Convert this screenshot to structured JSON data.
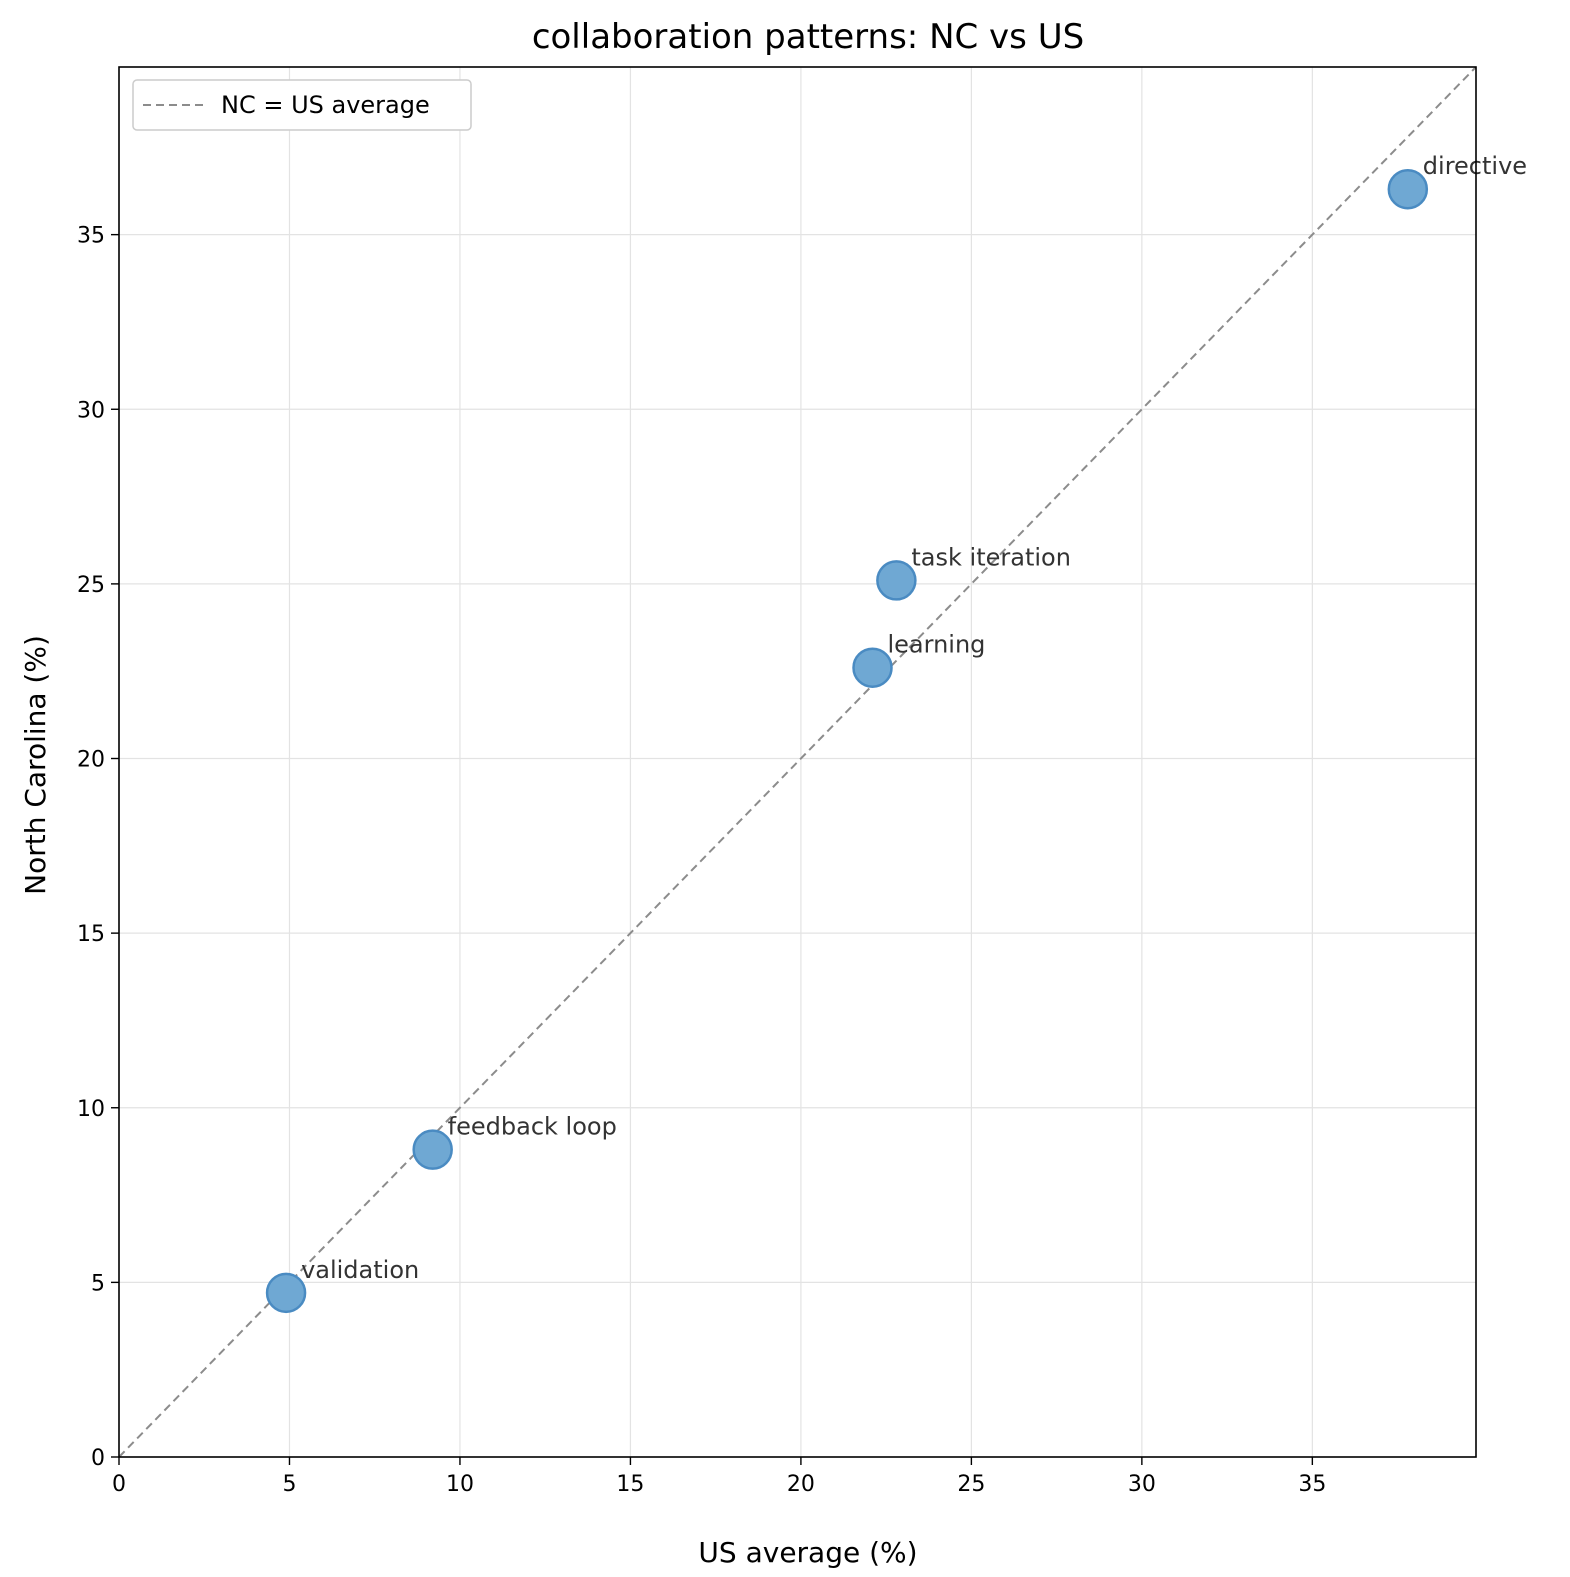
{
  "chart_data": {
    "type": "scatter",
    "title": "collaboration patterns: NC vs US",
    "xlabel": "US average (%)",
    "ylabel": "North Carolina (%)",
    "xlim": [
      0,
      39.8
    ],
    "ylim": [
      0,
      39.8
    ],
    "xticks": [
      "0",
      "5",
      "10",
      "15",
      "20",
      "25",
      "30",
      "35"
    ],
    "yticks": [
      "0",
      "5",
      "10",
      "15",
      "20",
      "25",
      "30",
      "35"
    ],
    "grid": true,
    "legend": {
      "placement": "top-left",
      "entries": [
        {
          "label": "NC = US average",
          "style": "dashed-line"
        }
      ]
    },
    "reference_line": {
      "label": "NC = US average",
      "from": [
        0,
        0
      ],
      "to": [
        39.8,
        39.8
      ]
    },
    "points": [
      {
        "label": "directive",
        "x": 37.8,
        "y": 36.3
      },
      {
        "label": "task iteration",
        "x": 22.8,
        "y": 25.1
      },
      {
        "label": "learning",
        "x": 22.1,
        "y": 22.6
      },
      {
        "label": "feedback loop",
        "x": 9.2,
        "y": 8.8
      },
      {
        "label": "validation",
        "x": 4.9,
        "y": 4.7
      }
    ],
    "colors": {
      "point_fill": "#6fa8d3",
      "point_stroke": "#4a8bc2",
      "reference_line": "#8c8c8c",
      "grid": "#e3e3e3"
    }
  }
}
